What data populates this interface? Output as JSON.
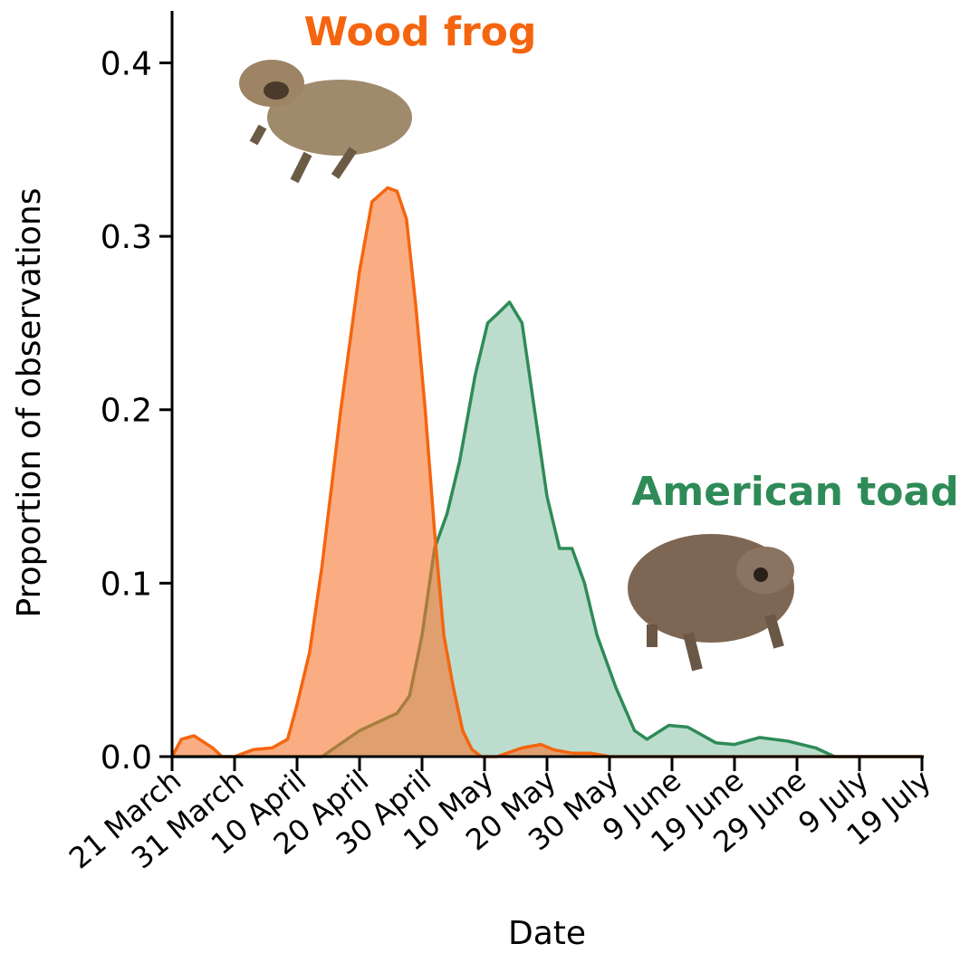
{
  "chart_data": {
    "type": "area",
    "x_label": "Date",
    "y_label": "Proportion of observations",
    "xlim": [
      0,
      120
    ],
    "xticks": [
      {
        "value": 0,
        "label": "21 March"
      },
      {
        "value": 10,
        "label": "31 March"
      },
      {
        "value": 20,
        "label": "10 April"
      },
      {
        "value": 30,
        "label": "20 April"
      },
      {
        "value": 40,
        "label": "30 April"
      },
      {
        "value": 50,
        "label": "10 May"
      },
      {
        "value": 60,
        "label": "20 May"
      },
      {
        "value": 70,
        "label": "30 May"
      },
      {
        "value": 80,
        "label": "9 June"
      },
      {
        "value": 90,
        "label": "19 June"
      },
      {
        "value": 100,
        "label": "29 June"
      },
      {
        "value": 110,
        "label": "9 July"
      },
      {
        "value": 120,
        "label": "19 July"
      }
    ],
    "ylim": [
      0,
      0.43
    ],
    "yticks": [
      {
        "value": 0,
        "label": "0.0"
      },
      0.1,
      0.2,
      0.3,
      0.4
    ],
    "series": [
      {
        "name": "American toad",
        "color": "#2e8b57",
        "fill": "#8fc6ab",
        "x": [
          0,
          24,
          28,
          30,
          33,
          36,
          38,
          40,
          42,
          44,
          46,
          48.5,
          50.5,
          52,
          54,
          56,
          58,
          60,
          62,
          64,
          66,
          68,
          71,
          74,
          76,
          79.5,
          82.5,
          87,
          90,
          94,
          98.5,
          103,
          106,
          120
        ],
        "values": [
          0,
          0,
          0.01,
          0.015,
          0.02,
          0.025,
          0.035,
          0.07,
          0.12,
          0.14,
          0.17,
          0.22,
          0.25,
          0.255,
          0.262,
          0.25,
          0.2,
          0.15,
          0.12,
          0.12,
          0.1,
          0.07,
          0.04,
          0.015,
          0.01,
          0.018,
          0.017,
          0.008,
          0.007,
          0.011,
          0.009,
          0.005,
          0,
          0
        ]
      },
      {
        "name": "Wood frog",
        "color": "#f5650f",
        "fill": "#f7772e",
        "x": [
          0,
          1.5,
          3.5,
          6.5,
          8,
          10,
          13,
          16,
          18.5,
          20,
          22,
          24,
          27,
          30,
          32,
          34.5,
          36,
          37.5,
          39,
          40.5,
          42,
          43.5,
          45,
          46.5,
          48,
          49.5,
          52,
          56,
          59,
          61,
          64,
          67,
          70,
          75,
          120
        ],
        "values": [
          0,
          0.01,
          0.012,
          0.005,
          0,
          0,
          0.004,
          0.005,
          0.01,
          0.03,
          0.06,
          0.11,
          0.2,
          0.28,
          0.32,
          0.328,
          0.326,
          0.31,
          0.26,
          0.2,
          0.13,
          0.07,
          0.04,
          0.015,
          0.004,
          0,
          0,
          0.005,
          0.007,
          0.004,
          0.002,
          0.002,
          0,
          0,
          0
        ]
      }
    ]
  }
}
